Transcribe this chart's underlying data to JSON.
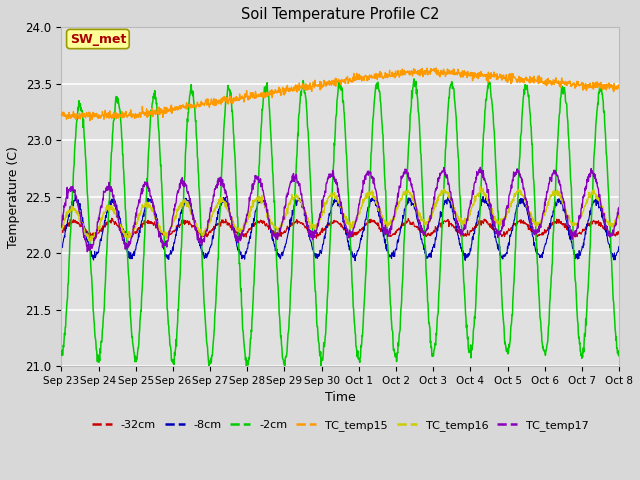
{
  "title": "Soil Temperature Profile C2",
  "xlabel": "Time",
  "ylabel": "Temperature (C)",
  "ylim": [
    21.0,
    24.0
  ],
  "yticks": [
    21.0,
    21.5,
    22.0,
    22.5,
    23.0,
    23.5,
    24.0
  ],
  "xlabels": [
    "Sep 23",
    "Sep 24",
    "Sep 25",
    "Sep 26",
    "Sep 27",
    "Sep 28",
    "Sep 29",
    "Sep 30",
    "Oct 1",
    "Oct 2",
    "Oct 3",
    "Oct 4",
    "Oct 5",
    "Oct 6",
    "Oct 7",
    "Oct 8"
  ],
  "legend_labels": [
    "-32cm",
    "-8cm",
    "-2cm",
    "TC_temp15",
    "TC_temp16",
    "TC_temp17"
  ],
  "legend_colors": [
    "#cc0000",
    "#0000bb",
    "#00cc00",
    "#ff9900",
    "#cccc00",
    "#8800bb"
  ],
  "annotation_text": "SW_met",
  "annotation_color": "#aa0000",
  "annotation_bg": "#ffff99",
  "annotation_border": "#999900",
  "fig_bg": "#d8d8d8",
  "plot_bg": "#e0e0e0",
  "grid_color": "#ffffff",
  "n_days": 15,
  "n_pts_per_day": 96,
  "seed": 42
}
